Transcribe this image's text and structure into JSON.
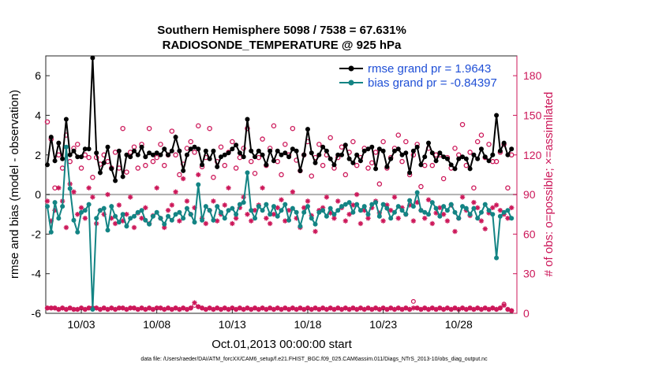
{
  "chart_data": {
    "type": "line",
    "title_line1": "Southern Hemisphere 5098 / 7538 = 67.631%",
    "title_line2": "RADIOSONDE_TEMPERATURE @ 925 hPa",
    "ylabel_left": "rmse and bias (model - observation)",
    "ylabel_right": "# of obs: o=possible; ×=assimilated",
    "xlabel": "Oct.01,2013 00:00:00 start",
    "footnote": "data file: /Users/raeder/DAI/ATM_forcXX/CAM6_setup/f.e21.FHIST_BGC.f09_025.CAM6assim.011/Diags_NTrS_2013-10/obs_diag_output.nc",
    "ylim_left": [
      -6,
      7
    ],
    "ylim_right": [
      0,
      195
    ],
    "xlim": [
      0,
      124
    ],
    "yticks_left": [
      "-6",
      "-4",
      "-2",
      "0",
      "2",
      "4",
      "6"
    ],
    "yticks_right": [
      "0",
      "30",
      "60",
      "90",
      "120",
      "150",
      "180"
    ],
    "xticks": [
      {
        "t": 9,
        "label": "10/03"
      },
      {
        "t": 29,
        "label": "10/08"
      },
      {
        "t": 49,
        "label": "10/13"
      },
      {
        "t": 69,
        "label": "10/18"
      },
      {
        "t": 89,
        "label": "10/23"
      },
      {
        "t": 109,
        "label": "10/28"
      }
    ],
    "legend": [
      {
        "name": "rmse grand pr = 1.9643",
        "color": "#000000"
      },
      {
        "name": "bias grand pr = -0.84397",
        "color": "#138484"
      }
    ],
    "colors": {
      "rmse": "#000000",
      "bias": "#138484",
      "obs": "#cc1759",
      "zero_line": "#b0b0b0",
      "legend_text": "#1f4fd6"
    },
    "series": [
      {
        "name": "rmse",
        "x": [
          0,
          1,
          2,
          3,
          4,
          5,
          6,
          7,
          8,
          9,
          10,
          11,
          12,
          13,
          14,
          15,
          16,
          17,
          18,
          19,
          20,
          21,
          22,
          23,
          24,
          25,
          26,
          27,
          28,
          29,
          30,
          31,
          32,
          33,
          34,
          35,
          36,
          37,
          38,
          39,
          40,
          41,
          42,
          43,
          44,
          45,
          46,
          47,
          48,
          49,
          50,
          51,
          52,
          53,
          54,
          55,
          56,
          57,
          58,
          59,
          60,
          61,
          62,
          63,
          64,
          65,
          66,
          67,
          68,
          69,
          70,
          71,
          72,
          73,
          74,
          75,
          76,
          77,
          78,
          79,
          80,
          81,
          82,
          83,
          84,
          85,
          86,
          87,
          88,
          89,
          90,
          91,
          92,
          93,
          94,
          95,
          96,
          97,
          98,
          99,
          100,
          101,
          102,
          103,
          104,
          105,
          106,
          107,
          108,
          109,
          110,
          111,
          112,
          113,
          114,
          115,
          116,
          117,
          118,
          119,
          120,
          121,
          122,
          123
        ],
        "values": [
          1.5,
          2.9,
          1.7,
          2.6,
          1.8,
          3.8,
          2.0,
          2.2,
          1.9,
          1.9,
          2.3,
          2.3,
          6.9,
          2.1,
          1.1,
          1.6,
          2.4,
          1.3,
          0.7,
          2.2,
          0.9,
          2.0,
          1.9,
          2.2,
          2.0,
          2.4,
          1.9,
          2.1,
          2.0,
          2.1,
          2.0,
          2.3,
          2.0,
          2.2,
          2.9,
          2.2,
          1.2,
          2.0,
          2.3,
          2.4,
          2.3,
          1.5,
          2.2,
          1.8,
          2.2,
          1.4,
          1.9,
          2.0,
          2.1,
          2.3,
          2.5,
          2.1,
          1.9,
          3.8,
          2.2,
          1.9,
          2.2,
          2.0,
          1.5,
          2.2,
          1.7,
          2.2,
          2.0,
          2.1,
          1.9,
          2.3,
          2.2,
          1.2,
          2.0,
          3.3,
          2.1,
          1.6,
          2.0,
          2.4,
          2.2,
          1.8,
          1.5,
          2.0,
          2.0,
          2.5,
          1.8,
          1.6,
          2.0,
          1.7,
          2.2,
          2.3,
          2.4,
          1.3,
          2.3,
          2.2,
          1.4,
          1.8,
          2.2,
          2.3,
          2.0,
          2.1,
          1.1,
          2.2,
          2.4,
          1.5,
          1.9,
          2.6,
          2.1,
          1.7,
          2.1,
          1.9,
          1.8,
          1.5,
          1.3,
          1.8,
          1.9,
          1.8,
          1.3,
          2.0,
          1.8,
          2.3,
          1.9,
          1.7,
          2.0,
          4.0,
          2.2,
          2.6,
          2.0,
          2.3
        ]
      },
      {
        "name": "bias",
        "x": [
          0,
          1,
          2,
          3,
          4,
          5,
          6,
          7,
          8,
          9,
          10,
          11,
          12,
          13,
          14,
          15,
          16,
          17,
          18,
          19,
          20,
          21,
          22,
          23,
          24,
          25,
          26,
          27,
          28,
          29,
          30,
          31,
          32,
          33,
          34,
          35,
          36,
          37,
          38,
          39,
          40,
          41,
          42,
          43,
          44,
          45,
          46,
          47,
          48,
          49,
          50,
          51,
          52,
          53,
          54,
          55,
          56,
          57,
          58,
          59,
          60,
          61,
          62,
          63,
          64,
          65,
          66,
          67,
          68,
          69,
          70,
          71,
          72,
          73,
          74,
          75,
          76,
          77,
          78,
          79,
          80,
          81,
          82,
          83,
          84,
          85,
          86,
          87,
          88,
          89,
          90,
          91,
          92,
          93,
          94,
          95,
          96,
          97,
          98,
          99,
          100,
          101,
          102,
          103,
          104,
          105,
          106,
          107,
          108,
          109,
          110,
          111,
          112,
          113,
          114,
          115,
          116,
          117,
          118,
          119,
          120,
          121,
          122,
          123
        ],
        "values": [
          -0.6,
          -1.9,
          -0.4,
          -1.2,
          -0.6,
          2.4,
          0.3,
          -1.3,
          -1.9,
          -0.9,
          -0.8,
          -0.5,
          -5.8,
          -1.2,
          -0.8,
          -0.7,
          -1.8,
          -0.6,
          -1.1,
          -1.4,
          -1.0,
          -1.6,
          -1.2,
          -1.1,
          -0.9,
          -0.8,
          -1.3,
          -1.5,
          -1.1,
          -0.9,
          -1.2,
          -1.5,
          -1.1,
          -1.3,
          -1.0,
          -0.9,
          -1.2,
          -0.7,
          -1.0,
          -1.4,
          0.5,
          -1.3,
          -0.6,
          -0.8,
          -1.3,
          -0.6,
          -0.9,
          -1.2,
          -0.8,
          -0.7,
          -1.0,
          -0.5,
          -0.4,
          1.1,
          -0.8,
          -1.2,
          -0.6,
          -0.8,
          -0.5,
          -1.0,
          -0.6,
          -1.1,
          -0.8,
          -0.5,
          -1.3,
          -0.7,
          -0.9,
          -1.6,
          -0.9,
          -0.6,
          -1.2,
          -1.5,
          -0.9,
          -0.8,
          -1.1,
          -0.7,
          -1.0,
          -0.8,
          -0.6,
          -0.5,
          -0.4,
          -0.9,
          -0.5,
          -0.8,
          -0.6,
          -1.0,
          -0.5,
          -0.4,
          -1.1,
          -0.5,
          -0.7,
          -1.2,
          -0.9,
          -0.6,
          -0.8,
          -1.0,
          -0.3,
          -0.6,
          0.1,
          -0.8,
          -0.9,
          -1.0,
          -0.4,
          -0.7,
          -1.1,
          -0.6,
          -0.8,
          -0.5,
          -0.9,
          -1.2,
          -0.6,
          -0.7,
          -1.0,
          -0.7,
          -1.2,
          -0.9,
          -0.5,
          -0.8,
          -1.0,
          -3.2,
          -1.1,
          -0.9,
          -0.8,
          -1.2
        ]
      },
      {
        "name": "possible",
        "x": [
          0,
          1,
          2,
          3,
          4,
          5,
          6,
          7,
          8,
          9,
          10,
          11,
          12,
          13,
          14,
          15,
          16,
          17,
          18,
          19,
          20,
          21,
          22,
          23,
          24,
          25,
          26,
          27,
          28,
          29,
          30,
          31,
          32,
          33,
          34,
          35,
          36,
          37,
          38,
          39,
          40,
          41,
          42,
          43,
          44,
          45,
          46,
          47,
          48,
          49,
          50,
          51,
          52,
          53,
          54,
          55,
          56,
          57,
          58,
          59,
          60,
          61,
          62,
          63,
          64,
          65,
          66,
          67,
          68,
          69,
          70,
          71,
          72,
          73,
          74,
          75,
          76,
          77,
          78,
          79,
          80,
          81,
          82,
          83,
          84,
          85,
          86,
          87,
          88,
          89,
          90,
          91,
          92,
          93,
          94,
          95,
          96,
          97,
          98,
          99,
          100,
          101,
          102,
          103,
          104,
          105,
          106,
          107,
          108,
          109,
          110,
          111,
          112,
          113,
          114,
          115,
          116,
          117,
          118,
          119,
          120,
          121,
          122,
          123
        ],
        "values": [
          145,
          132,
          95,
          120,
          110,
          135,
          115,
          125,
          128,
          110,
          120,
          118,
          103,
          118,
          113,
          120,
          115,
          110,
          122,
          110,
          140,
          107,
          122,
          126,
          110,
          128,
          112,
          140,
          115,
          118,
          128,
          112,
          120,
          138,
          120,
          105,
          113,
          125,
          130,
          122,
          142,
          111,
          118,
          140,
          103,
          115,
          126,
          112,
          122,
          130,
          110,
          118,
          125,
          140,
          115,
          106,
          118,
          132,
          112,
          125,
          142,
          115,
          105,
          128,
          120,
          140,
          116,
          108,
          120,
          130,
          104,
          118,
          128,
          112,
          120,
          133,
          110,
          118,
          126,
          105,
          122,
          130,
          112,
          118,
          125,
          110,
          114,
          122,
          98,
          130,
          110,
          118,
          125,
          135,
          115,
          130,
          105,
          120,
          128,
          96,
          112,
          125,
          112,
          120,
          120,
          102,
          118,
          110,
          125,
          120,
          143,
          112,
          122,
          95,
          130,
          135,
          118,
          128,
          115,
          115,
          122,
          128,
          95,
          120
        ]
      },
      {
        "name": "assimilated",
        "x": [
          0,
          1,
          2,
          3,
          4,
          5,
          6,
          7,
          8,
          9,
          10,
          11,
          12,
          13,
          14,
          15,
          16,
          17,
          18,
          19,
          20,
          21,
          22,
          23,
          24,
          25,
          26,
          27,
          28,
          29,
          30,
          31,
          32,
          33,
          34,
          35,
          36,
          37,
          38,
          39,
          40,
          41,
          42,
          43,
          44,
          45,
          46,
          47,
          48,
          49,
          50,
          51,
          52,
          53,
          54,
          55,
          56,
          57,
          58,
          59,
          60,
          61,
          62,
          63,
          64,
          65,
          66,
          67,
          68,
          69,
          70,
          71,
          72,
          73,
          74,
          75,
          76,
          77,
          78,
          79,
          80,
          81,
          82,
          83,
          84,
          85,
          86,
          87,
          88,
          89,
          90,
          91,
          92,
          93,
          94,
          95,
          96,
          97,
          98,
          99,
          100,
          101,
          102,
          103,
          104,
          105,
          106,
          107,
          108,
          109,
          110,
          111,
          112,
          113,
          114,
          115,
          116,
          117,
          118,
          119,
          120,
          121,
          122,
          123
        ],
        "values": [
          85,
          70,
          78,
          95,
          85,
          65,
          98,
          92,
          75,
          80,
          72,
          95,
          88,
          68,
          78,
          75,
          90,
          72,
          68,
          82,
          70,
          75,
          88,
          65,
          76,
          72,
          80,
          68,
          74,
          95,
          72,
          65,
          78,
          82,
          92,
          70,
          102,
          85,
          75,
          80,
          105,
          72,
          68,
          78,
          85,
          70,
          75,
          82,
          95,
          68,
          72,
          80,
          88,
          75,
          70,
          78,
          82,
          95,
          72,
          68,
          75,
          80,
          86,
          70,
          78,
          92,
          72,
          65,
          80,
          85,
          74,
          62,
          78,
          80,
          88,
          76,
          72,
          85,
          80,
          70,
          75,
          82,
          90,
          68,
          78,
          72,
          80,
          85,
          76,
          70,
          82,
          78,
          88,
          72,
          80,
          75,
          82,
          70,
          84,
          78,
          72,
          86,
          68,
          76,
          80,
          75,
          70,
          82,
          62,
          72,
          88,
          78,
          74,
          84,
          80,
          70,
          64,
          76,
          80,
          82,
          78,
          75,
          72,
          80
        ],
        "noise_possible": [
          4,
          4,
          4,
          3,
          4,
          3,
          4,
          3,
          3,
          4,
          3,
          4,
          4,
          4,
          3,
          4,
          3,
          4,
          3,
          4,
          4,
          3,
          4,
          4,
          3,
          4,
          3,
          4,
          3,
          4,
          4,
          3,
          4,
          3,
          4,
          3,
          4,
          3,
          4,
          6,
          5,
          4,
          3,
          4,
          3,
          4,
          3,
          4,
          3,
          4,
          3,
          4,
          3,
          4,
          3,
          4,
          3,
          4,
          3,
          4,
          3,
          4,
          3,
          4,
          3,
          4,
          3,
          4,
          3,
          4,
          3,
          4,
          3,
          4,
          3,
          4,
          3,
          4,
          3,
          4,
          3,
          4,
          3,
          4,
          3,
          4,
          3,
          4,
          3,
          4,
          3,
          4,
          3,
          4,
          3,
          4,
          3,
          9,
          4,
          3,
          4,
          3,
          4,
          3,
          4,
          3,
          4,
          3,
          4,
          3,
          4,
          3,
          4,
          3,
          4,
          3,
          4,
          3,
          4,
          3,
          4,
          7,
          3,
          2
        ],
        "noise_assimilated": [
          4,
          4,
          4,
          3,
          4,
          3,
          4,
          3,
          3,
          4,
          3,
          4,
          4,
          4,
          3,
          4,
          3,
          4,
          3,
          4,
          4,
          3,
          4,
          4,
          3,
          4,
          3,
          4,
          3,
          4,
          4,
          3,
          4,
          3,
          4,
          3,
          4,
          3,
          4,
          8,
          5,
          4,
          3,
          4,
          3,
          4,
          3,
          4,
          3,
          4,
          3,
          4,
          3,
          4,
          3,
          4,
          3,
          4,
          3,
          4,
          3,
          4,
          3,
          4,
          3,
          4,
          3,
          4,
          3,
          4,
          3,
          4,
          3,
          4,
          3,
          4,
          3,
          4,
          3,
          4,
          3,
          4,
          3,
          4,
          3,
          4,
          3,
          4,
          3,
          4,
          3,
          4,
          3,
          4,
          3,
          4,
          3,
          4,
          4,
          3,
          4,
          3,
          4,
          3,
          4,
          3,
          4,
          3,
          4,
          3,
          4,
          3,
          4,
          3,
          4,
          3,
          4,
          3,
          4,
          3,
          4,
          6,
          3,
          2
        ]
      }
    ]
  }
}
